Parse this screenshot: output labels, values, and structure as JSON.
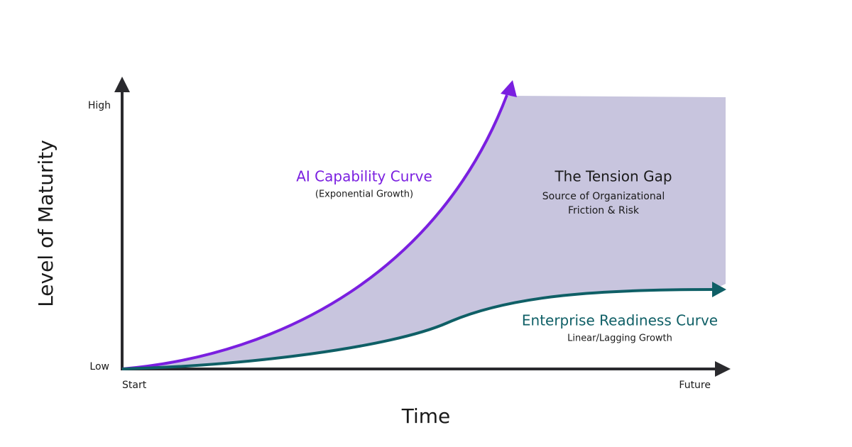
{
  "axes": {
    "y_label": "Level of Maturity",
    "x_label": "Time",
    "y_high": "High",
    "y_low": "Low",
    "x_start": "Start",
    "x_end": "Future"
  },
  "ai_curve": {
    "title": "AI Capability Curve",
    "subtitle": "(Exponential Growth)"
  },
  "gap": {
    "title": "The Tension Gap",
    "line1": "Source of Organizational",
    "line2": "Friction & Risk"
  },
  "enterprise_curve": {
    "title": "Enterprise Readiness Curve",
    "subtitle": "Linear/Lagging Growth"
  }
}
